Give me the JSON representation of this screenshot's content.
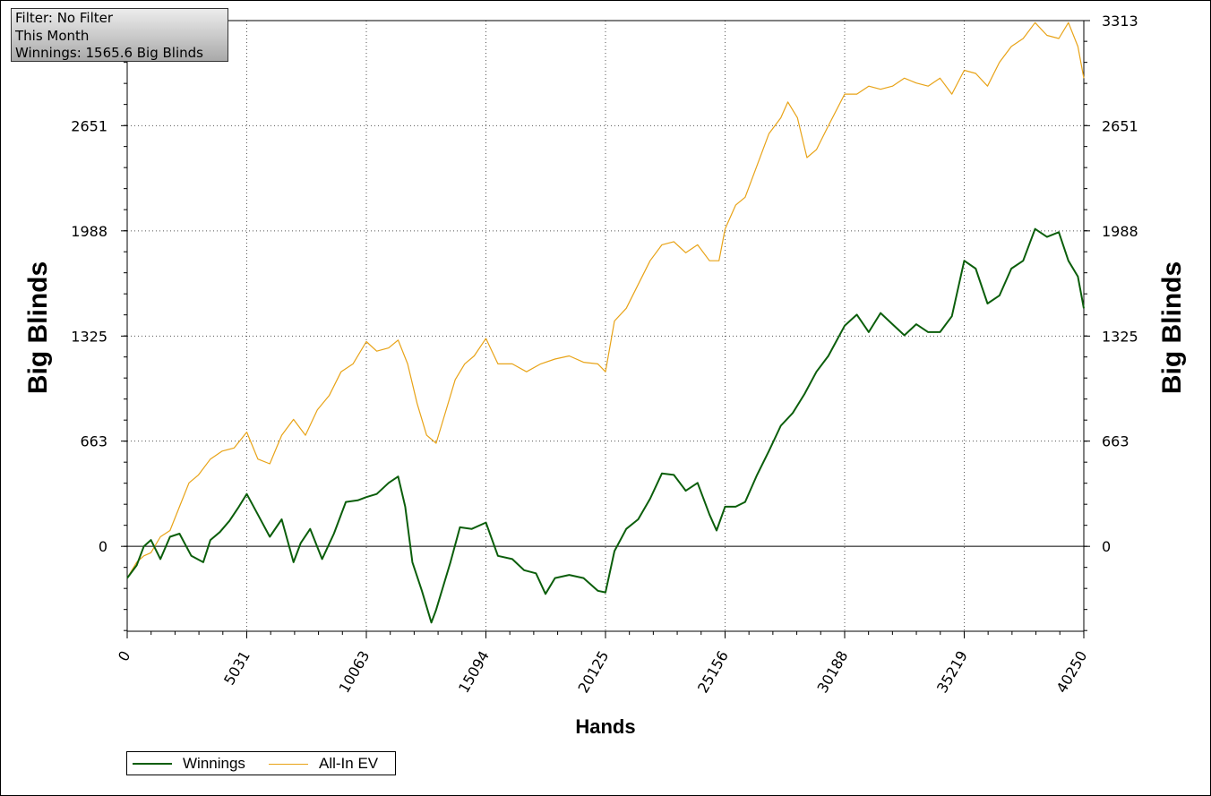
{
  "info_box": {
    "filter": "Filter: No Filter",
    "period": "This Month",
    "winnings": "Winnings: 1565.6 Big Blinds"
  },
  "legend": {
    "winnings_label": "Winnings",
    "ev_label": "All-In EV"
  },
  "colors": {
    "winnings": "#0b5e0b",
    "ev": "#e8a317",
    "grid": "#555555"
  },
  "chart_data": {
    "type": "line",
    "xlabel": "Hands",
    "ylabel_left": "Big Blinds",
    "ylabel_right": "Big Blinds",
    "xlim": [
      0,
      40250
    ],
    "ylim": [
      -535,
      3313
    ],
    "x_ticks": [
      0,
      5031,
      10063,
      15094,
      20125,
      25156,
      30188,
      35219,
      40250
    ],
    "y_ticks": [
      0,
      663,
      1325,
      1988,
      2651,
      3313
    ],
    "grid": true,
    "legend_position": "bottom-left",
    "series": [
      {
        "name": "Winnings",
        "x": [
          0,
          400,
          700,
          1000,
          1400,
          1800,
          2200,
          2700,
          3200,
          3500,
          3900,
          4300,
          4700,
          5031,
          5500,
          6000,
          6500,
          7000,
          7300,
          7700,
          8200,
          8700,
          9200,
          9700,
          10063,
          10500,
          11000,
          11400,
          11700,
          12000,
          12400,
          12800,
          13000,
          13300,
          13600,
          14000,
          14500,
          15094,
          15600,
          16200,
          16700,
          17200,
          17600,
          18000,
          18600,
          19200,
          19800,
          20125,
          20500,
          21000,
          21500,
          22000,
          22500,
          23000,
          23500,
          24000,
          24500,
          24800,
          25156,
          25600,
          26000,
          26500,
          27000,
          27500,
          28000,
          28500,
          29000,
          29500,
          30188,
          30700,
          31200,
          31700,
          32200,
          32700,
          33200,
          33700,
          34200,
          34700,
          35219,
          35700,
          36200,
          36700,
          37200,
          37700,
          38200,
          38700,
          39200,
          39600,
          40000,
          40250
        ],
        "y": [
          -200,
          -120,
          0,
          40,
          -80,
          60,
          80,
          -60,
          -100,
          40,
          90,
          160,
          250,
          330,
          200,
          60,
          170,
          -100,
          20,
          110,
          -80,
          80,
          280,
          290,
          310,
          330,
          400,
          440,
          250,
          -100,
          -280,
          -480,
          -400,
          -250,
          -100,
          120,
          110,
          150,
          -60,
          -80,
          -150,
          -170,
          -300,
          -200,
          -180,
          -200,
          -280,
          -290,
          -30,
          110,
          170,
          300,
          460,
          450,
          350,
          400,
          200,
          100,
          250,
          250,
          280,
          450,
          600,
          760,
          840,
          960,
          1100,
          1200,
          1390,
          1460,
          1350,
          1470,
          1400,
          1330,
          1400,
          1350,
          1350,
          1450,
          1800,
          1750,
          1530,
          1580,
          1750,
          1800,
          2000,
          1950,
          1980,
          1800,
          1700,
          1500
        ]
      },
      {
        "name": "All-In EV",
        "x": [
          0,
          400,
          700,
          1000,
          1400,
          1800,
          2200,
          2600,
          3000,
          3500,
          4000,
          4500,
          5031,
          5500,
          6000,
          6500,
          7000,
          7500,
          8000,
          8500,
          9000,
          9500,
          10063,
          10500,
          11000,
          11400,
          11800,
          12200,
          12600,
          13000,
          13400,
          13800,
          14200,
          14600,
          15094,
          15600,
          16200,
          16800,
          17400,
          18000,
          18600,
          19200,
          19800,
          20125,
          20500,
          21000,
          21500,
          22000,
          22500,
          23000,
          23500,
          24000,
          24500,
          24900,
          25156,
          25600,
          26000,
          26500,
          27000,
          27500,
          27800,
          28200,
          28600,
          29000,
          29500,
          30188,
          30700,
          31200,
          31700,
          32200,
          32700,
          33200,
          33700,
          34200,
          34700,
          35219,
          35700,
          36200,
          36700,
          37200,
          37700,
          38200,
          38700,
          39200,
          39600,
          40000,
          40250
        ],
        "y": [
          -200,
          -100,
          -60,
          -40,
          60,
          100,
          250,
          400,
          450,
          550,
          600,
          620,
          720,
          550,
          520,
          700,
          800,
          700,
          860,
          950,
          1100,
          1150,
          1290,
          1230,
          1250,
          1300,
          1150,
          900,
          700,
          650,
          850,
          1050,
          1150,
          1200,
          1310,
          1150,
          1150,
          1100,
          1150,
          1180,
          1200,
          1160,
          1150,
          1100,
          1420,
          1500,
          1650,
          1800,
          1900,
          1920,
          1850,
          1900,
          1800,
          1800,
          2000,
          2150,
          2200,
          2400,
          2600,
          2700,
          2800,
          2700,
          2450,
          2500,
          2650,
          2850,
          2850,
          2900,
          2880,
          2900,
          2950,
          2920,
          2900,
          2950,
          2850,
          3000,
          2980,
          2900,
          3050,
          3150,
          3200,
          3300,
          3220,
          3200,
          3300,
          3150,
          2950
        ]
      }
    ]
  }
}
